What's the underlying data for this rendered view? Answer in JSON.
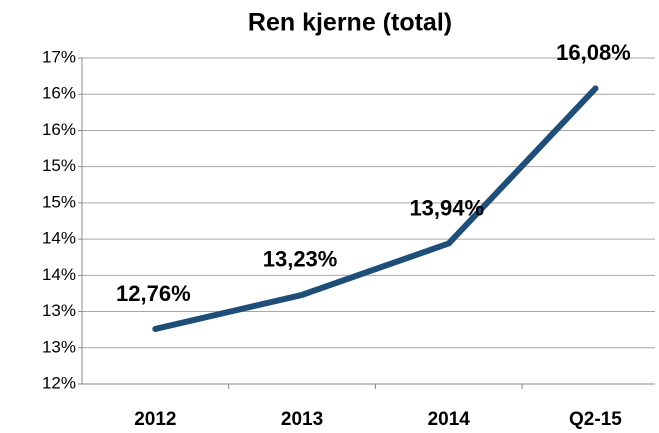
{
  "chart_data": {
    "type": "line",
    "title": "Ren kjerne (total)",
    "categories": [
      "2012",
      "2013",
      "2014",
      "Q2-15"
    ],
    "series": [
      {
        "name": "Ren kjerne (total)",
        "color": "#1f4e79",
        "values": [
          12.76,
          13.23,
          13.94,
          16.08
        ],
        "value_labels": [
          "12,76%",
          "13,23%",
          "13,94%",
          "16,08%"
        ]
      }
    ],
    "ylim": [
      12,
      16.5
    ],
    "yticks": [
      {
        "value": 12,
        "label": "12%"
      },
      {
        "value": 12.5,
        "label": "13%"
      },
      {
        "value": 13,
        "label": "13%"
      },
      {
        "value": 13.5,
        "label": "14%"
      },
      {
        "value": 14,
        "label": "14%"
      },
      {
        "value": 14.5,
        "label": "15%"
      },
      {
        "value": 15,
        "label": "15%"
      },
      {
        "value": 15.5,
        "label": "16%"
      },
      {
        "value": 16,
        "label": "16%"
      },
      {
        "value": 16.5,
        "label": "17%"
      }
    ],
    "grid": true
  }
}
